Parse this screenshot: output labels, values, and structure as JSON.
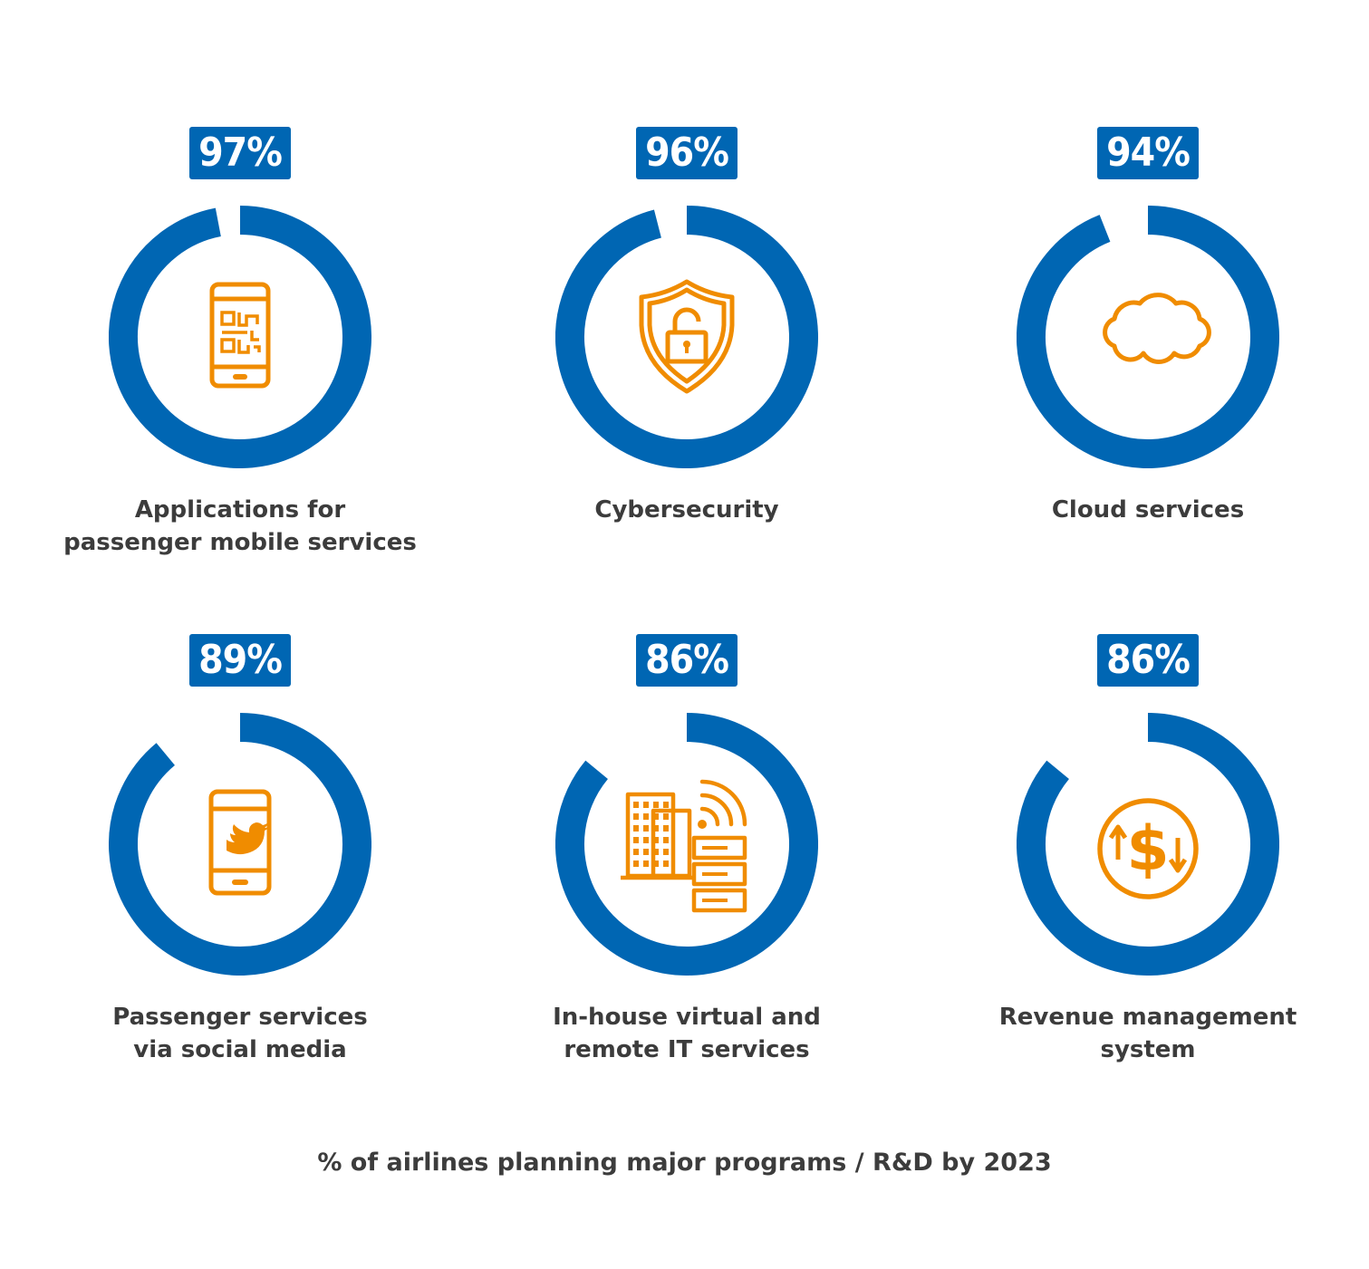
{
  "colors": {
    "ring": "#0066b3",
    "icon": "#f08c00",
    "badge": "#0066b3",
    "text": "#3c3c3c"
  },
  "chart_data": {
    "type": "donut",
    "items": [
      {
        "label": "Applications for\npassenger mobile services",
        "value": 97,
        "display": "97%",
        "icon": "smartphone-qr-icon"
      },
      {
        "label": "Cybersecurity",
        "value": 96,
        "display": "96%",
        "icon": "shield-lock-icon"
      },
      {
        "label": "Cloud services",
        "value": 94,
        "display": "94%",
        "icon": "cloud-icon"
      },
      {
        "label": "Passenger services\nvia social media",
        "value": 89,
        "display": "89%",
        "icon": "smartphone-twitter-icon"
      },
      {
        "label": "In-house virtual and\nremote IT services",
        "value": 86,
        "display": "86%",
        "icon": "buildings-servers-wifi-icon"
      },
      {
        "label": "Revenue management\nsystem",
        "value": 86,
        "display": "86%",
        "icon": "dollar-arrows-icon"
      }
    ],
    "caption": "% of airlines planning major programs / R&D by 2023"
  }
}
